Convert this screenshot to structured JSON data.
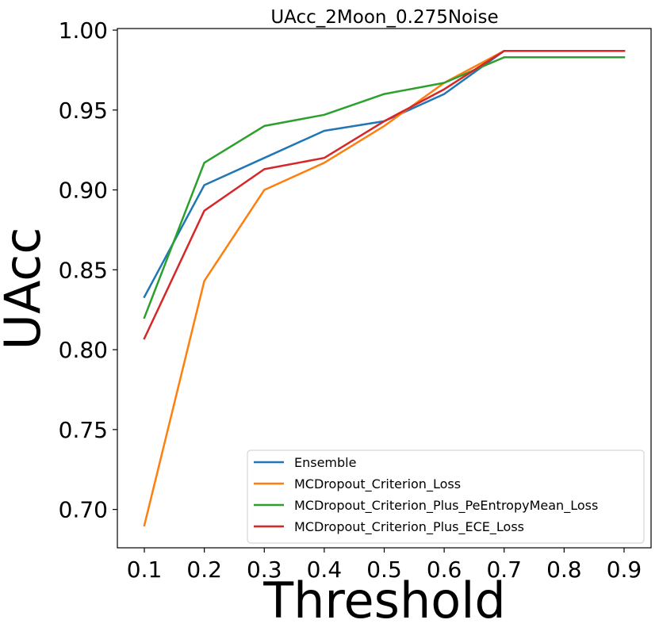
{
  "chart_data": {
    "type": "line",
    "title": "UAcc_2Moon_0.275Noise",
    "xlabel": "Threshold",
    "ylabel": "UAcc",
    "x": [
      0.1,
      0.2,
      0.3,
      0.4,
      0.5,
      0.6,
      0.7,
      0.8,
      0.9
    ],
    "xticks": [
      "0.1",
      "0.2",
      "0.3",
      "0.4",
      "0.5",
      "0.6",
      "0.7",
      "0.8",
      "0.9"
    ],
    "yticks": [
      "0.70",
      "0.75",
      "0.80",
      "0.85",
      "0.90",
      "0.95",
      "1.00"
    ],
    "ytick_values": [
      0.7,
      0.75,
      0.8,
      0.85,
      0.9,
      0.95,
      1.0
    ],
    "xlim": [
      0.055,
      0.945
    ],
    "ylim": [
      0.676,
      1.001
    ],
    "grid": false,
    "legend_position": "lower-right",
    "series": [
      {
        "name": "Ensemble",
        "color": "#1f77b4",
        "values": [
          0.833,
          0.903,
          0.92,
          0.937,
          0.943,
          0.96,
          0.987,
          0.987,
          0.987
        ]
      },
      {
        "name": "MCDropout_Criterion_Loss",
        "color": "#ff7f0e",
        "values": [
          0.69,
          0.843,
          0.9,
          0.917,
          0.94,
          0.967,
          0.987,
          0.987,
          0.987
        ]
      },
      {
        "name": "MCDropout_Criterion_Plus_PeEntropyMean_Loss",
        "color": "#2ca02c",
        "values": [
          0.82,
          0.917,
          0.94,
          0.947,
          0.96,
          0.967,
          0.983,
          0.983,
          0.983
        ]
      },
      {
        "name": "MCDropout_Criterion_Plus_ECE_Loss",
        "color": "#d62728",
        "values": [
          0.807,
          0.887,
          0.913,
          0.92,
          0.943,
          0.963,
          0.987,
          0.987,
          0.987
        ]
      }
    ]
  }
}
